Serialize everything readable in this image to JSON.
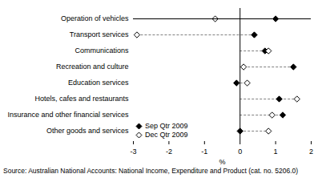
{
  "chart_data": {
    "type": "dot",
    "orientation": "horizontal",
    "source": "Source: Australian National Accounts: National Income, Expenditure and Product (cat. no. 5206.0)",
    "x_label": "%",
    "categories": [
      "Operation of vehicles",
      "Transport services",
      "Communications",
      "Recreation and culture",
      "Education services",
      "Hotels, cafes and restaurants",
      "Insurance and other financial services",
      "Other goods and services"
    ],
    "series": [
      {
        "name": "Sep Qtr 2009",
        "color": "#000000",
        "marker": "diamond",
        "values": [
          1.0,
          0.4,
          0.7,
          1.5,
          -0.1,
          1.1,
          1.2,
          0.0
        ]
      },
      {
        "name": "Dec Qtr 2009",
        "color": "#000000",
        "marker": "open diamond",
        "values": [
          -0.7,
          -2.9,
          0.8,
          0.1,
          0.2,
          1.6,
          0.9,
          0.8
        ]
      }
    ],
    "xlim": [
      -3,
      2
    ],
    "xticks": [
      -3,
      -2,
      -1,
      0,
      1,
      2
    ],
    "legend": "lower left",
    "grid": false
  }
}
